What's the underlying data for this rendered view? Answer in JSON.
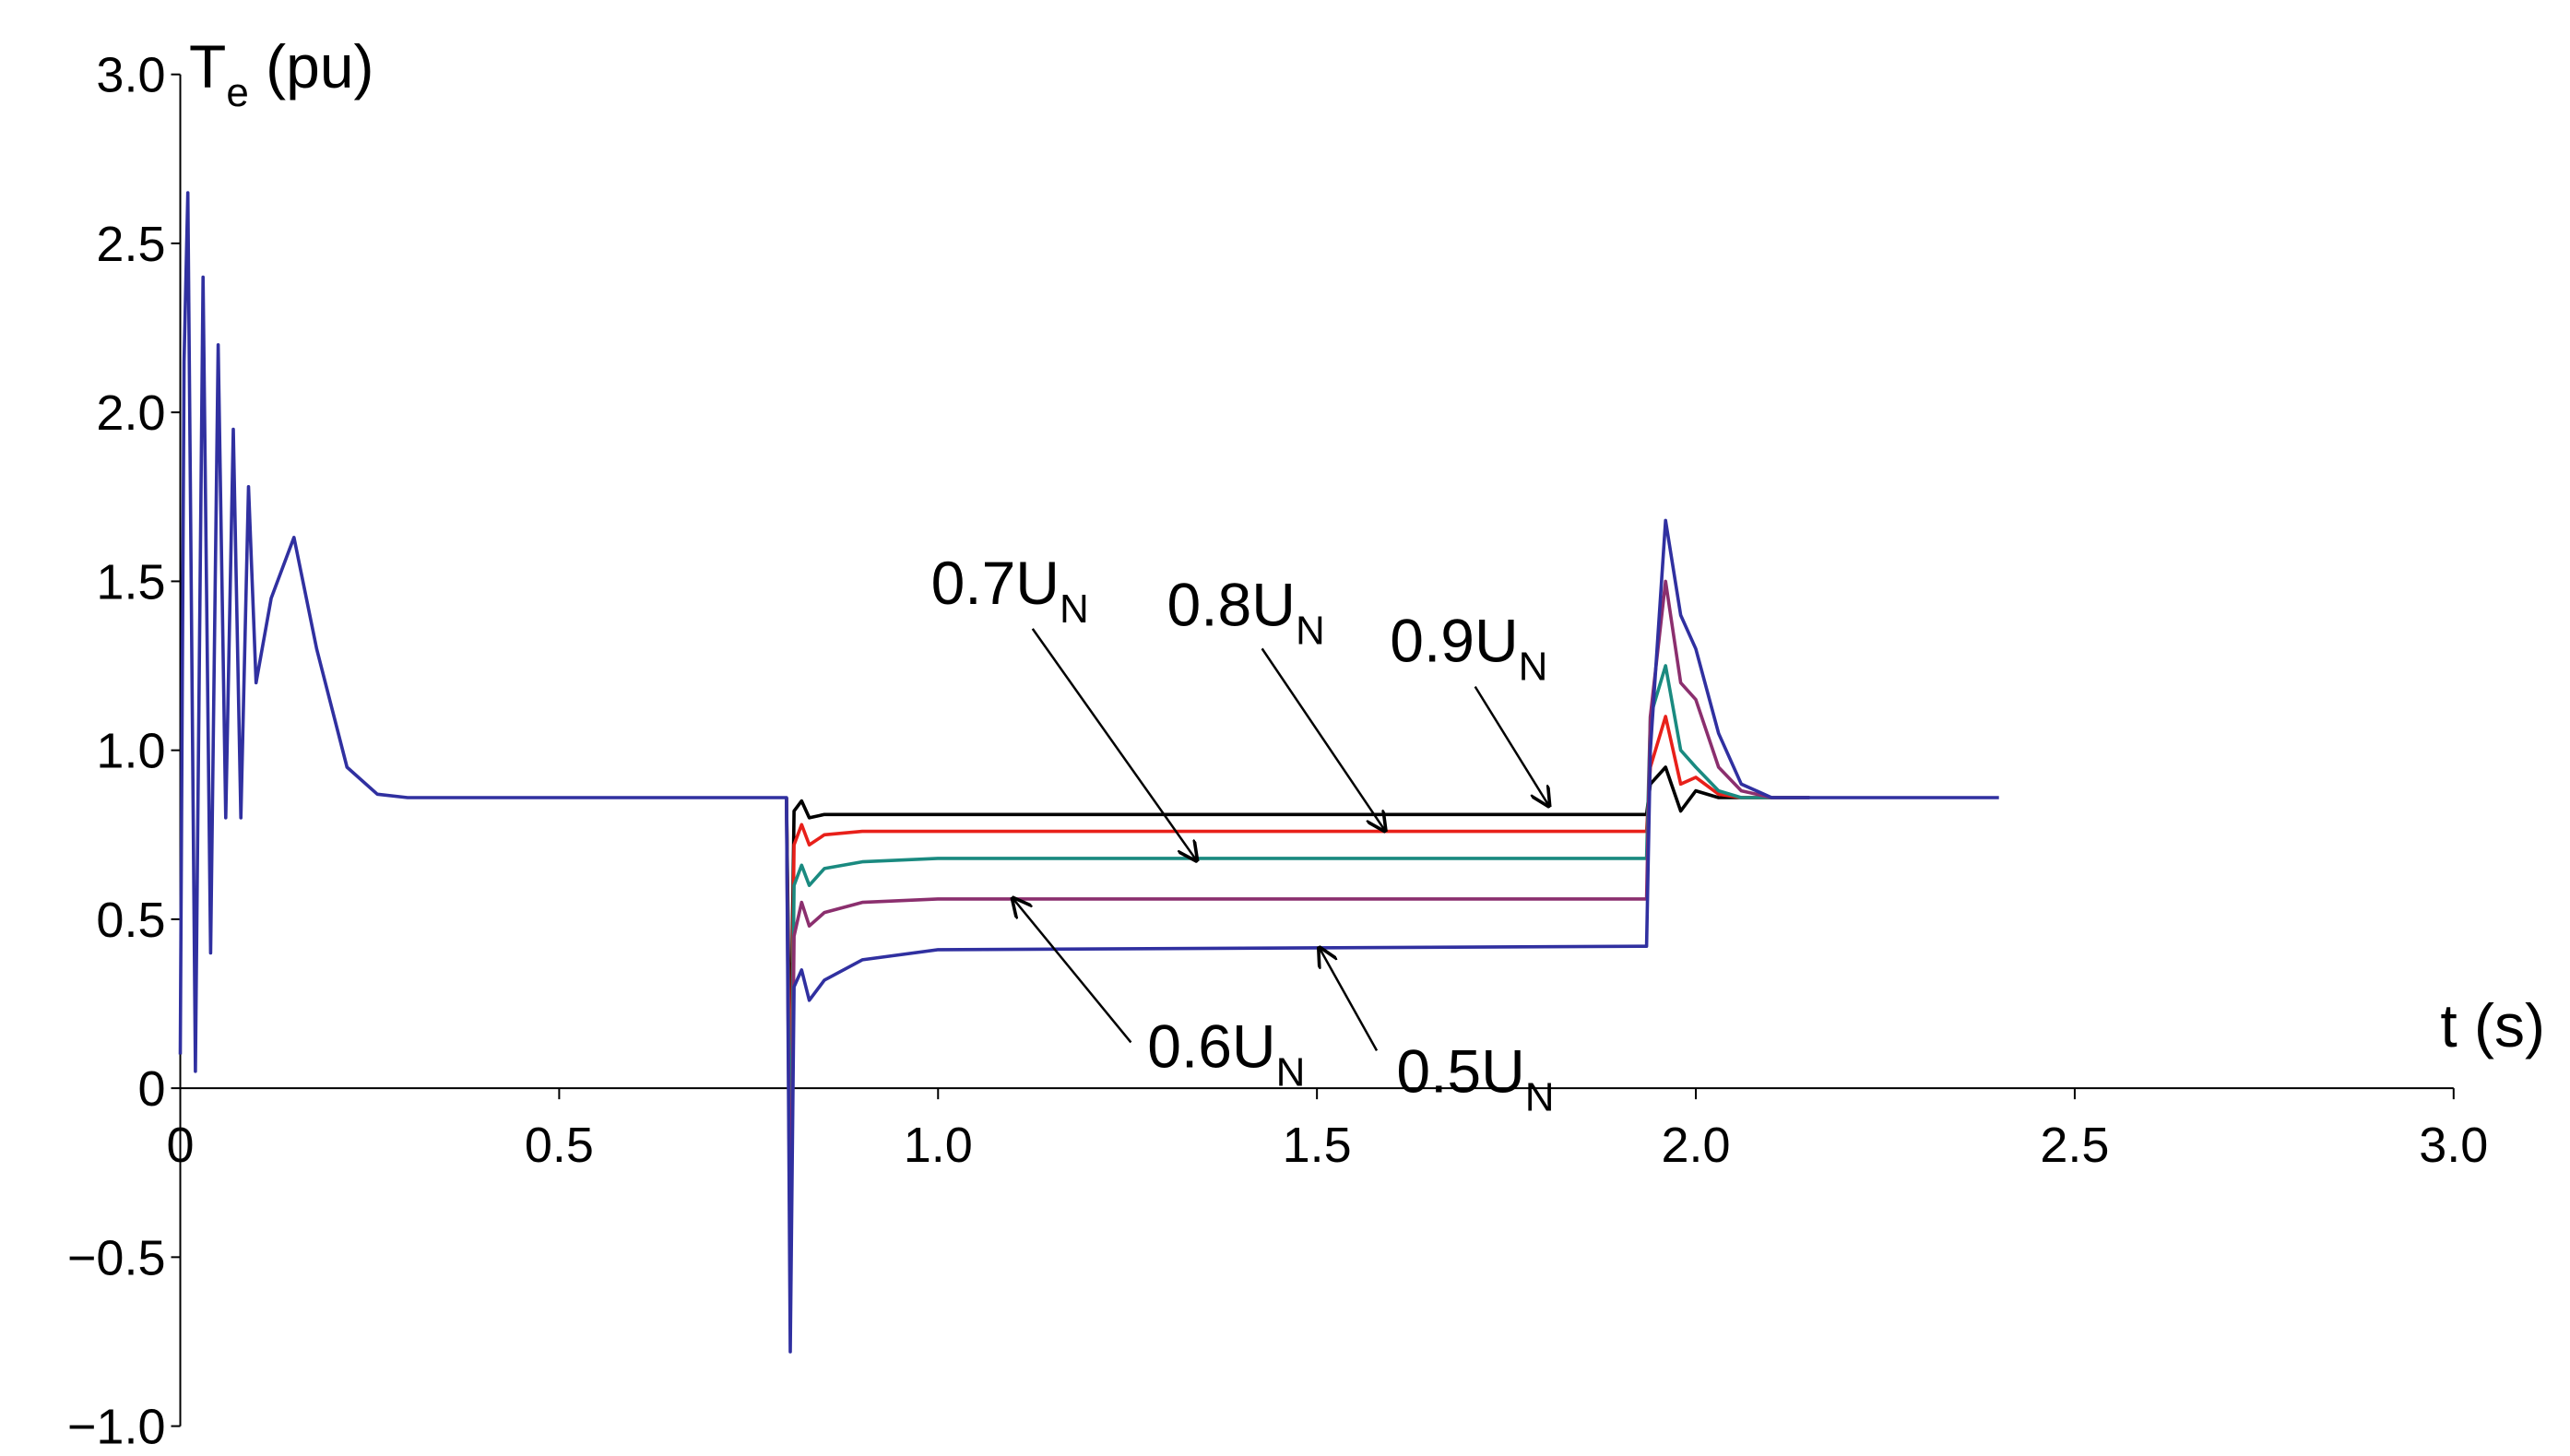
{
  "chart_data": {
    "type": "line",
    "y_label": {
      "text": "T",
      "subscript": "e",
      "suffix": " (pu)"
    },
    "x_label": "t (s)",
    "xlim": [
      0,
      3.0
    ],
    "xticks": [
      0,
      0.5,
      {
        "value": 1.0,
        "label": "1.0"
      },
      1.5,
      {
        "value": 2.0,
        "label": "2.0"
      },
      2.5,
      {
        "value": 3.0,
        "label": "3.0"
      }
    ],
    "ylim": [
      -1.0,
      3.0
    ],
    "yticks": [
      {
        "value": -1.0,
        "label": "−1.0"
      },
      {
        "value": -0.5,
        "label": "−0.5"
      },
      0,
      0.5,
      {
        "value": 1.0,
        "label": "1.0"
      },
      1.5,
      {
        "value": 2.0,
        "label": "2.0"
      },
      2.5,
      {
        "value": 3.0,
        "label": "3.0"
      }
    ],
    "series": [
      {
        "name": "0.9U",
        "name_subscript": "N",
        "color": "#000000",
        "x": [
          0.8,
          0.805,
          0.81,
          0.82,
          0.83,
          0.85,
          0.9,
          1.0,
          1.935,
          1.94,
          1.96,
          1.98,
          2.0,
          2.03,
          2.06,
          2.1,
          2.15
        ],
        "values": [
          0.86,
          0.0,
          0.82,
          0.85,
          0.8,
          0.81,
          0.81,
          0.81,
          0.81,
          0.9,
          0.95,
          0.82,
          0.88,
          0.86,
          0.86,
          0.86,
          0.86
        ]
      },
      {
        "name": "0.8U",
        "name_subscript": "N",
        "color": "#e8201a",
        "x": [
          0.8,
          0.805,
          0.81,
          0.82,
          0.83,
          0.85,
          0.9,
          1.0,
          1.935,
          1.94,
          1.96,
          1.98,
          2.0,
          2.03,
          2.06,
          2.1,
          2.15
        ],
        "values": [
          0.86,
          -0.2,
          0.72,
          0.78,
          0.72,
          0.75,
          0.76,
          0.76,
          0.76,
          0.95,
          1.1,
          0.9,
          0.92,
          0.87,
          0.86,
          0.86,
          0.86
        ]
      },
      {
        "name": "0.7U",
        "name_subscript": "N",
        "color": "#1a8a80",
        "x": [
          0.8,
          0.805,
          0.81,
          0.82,
          0.83,
          0.85,
          0.9,
          1.0,
          1.935,
          1.94,
          1.96,
          1.98,
          2.0,
          2.03,
          2.06,
          2.1,
          2.15
        ],
        "values": [
          0.86,
          -0.4,
          0.6,
          0.66,
          0.6,
          0.65,
          0.67,
          0.68,
          0.68,
          1.1,
          1.25,
          1.0,
          0.95,
          0.88,
          0.86,
          0.86,
          0.86
        ]
      },
      {
        "name": "0.6U",
        "name_subscript": "N",
        "color": "#8b2f6e",
        "x": [
          0.8,
          0.805,
          0.81,
          0.82,
          0.83,
          0.85,
          0.9,
          1.0,
          1.935,
          1.94,
          1.96,
          1.98,
          2.0,
          2.03,
          2.06,
          2.1,
          2.15
        ],
        "values": [
          0.86,
          -0.6,
          0.45,
          0.55,
          0.48,
          0.52,
          0.55,
          0.56,
          0.56,
          1.1,
          1.5,
          1.2,
          1.15,
          0.95,
          0.88,
          0.86,
          0.86
        ]
      },
      {
        "name": "0.5U",
        "name_subscript": "N",
        "color": "#3030a0",
        "x": [
          0,
          0.005,
          0.01,
          0.02,
          0.03,
          0.04,
          0.05,
          0.06,
          0.07,
          0.08,
          0.09,
          0.1,
          0.12,
          0.15,
          0.18,
          0.22,
          0.26,
          0.3,
          0.8,
          0.805,
          0.81,
          0.82,
          0.83,
          0.85,
          0.9,
          1.0,
          1.935,
          1.94,
          1.96,
          1.98,
          2.0,
          2.03,
          2.06,
          2.1,
          2.4
        ],
        "values": [
          0.1,
          2.15,
          2.65,
          0.05,
          2.4,
          0.4,
          2.2,
          0.8,
          1.95,
          0.8,
          1.78,
          1.2,
          1.45,
          1.63,
          1.3,
          0.95,
          0.87,
          0.86,
          0.86,
          -0.78,
          0.3,
          0.35,
          0.26,
          0.32,
          0.38,
          0.41,
          0.42,
          1.0,
          1.68,
          1.4,
          1.3,
          1.05,
          0.9,
          0.86,
          0.86
        ]
      }
    ]
  }
}
